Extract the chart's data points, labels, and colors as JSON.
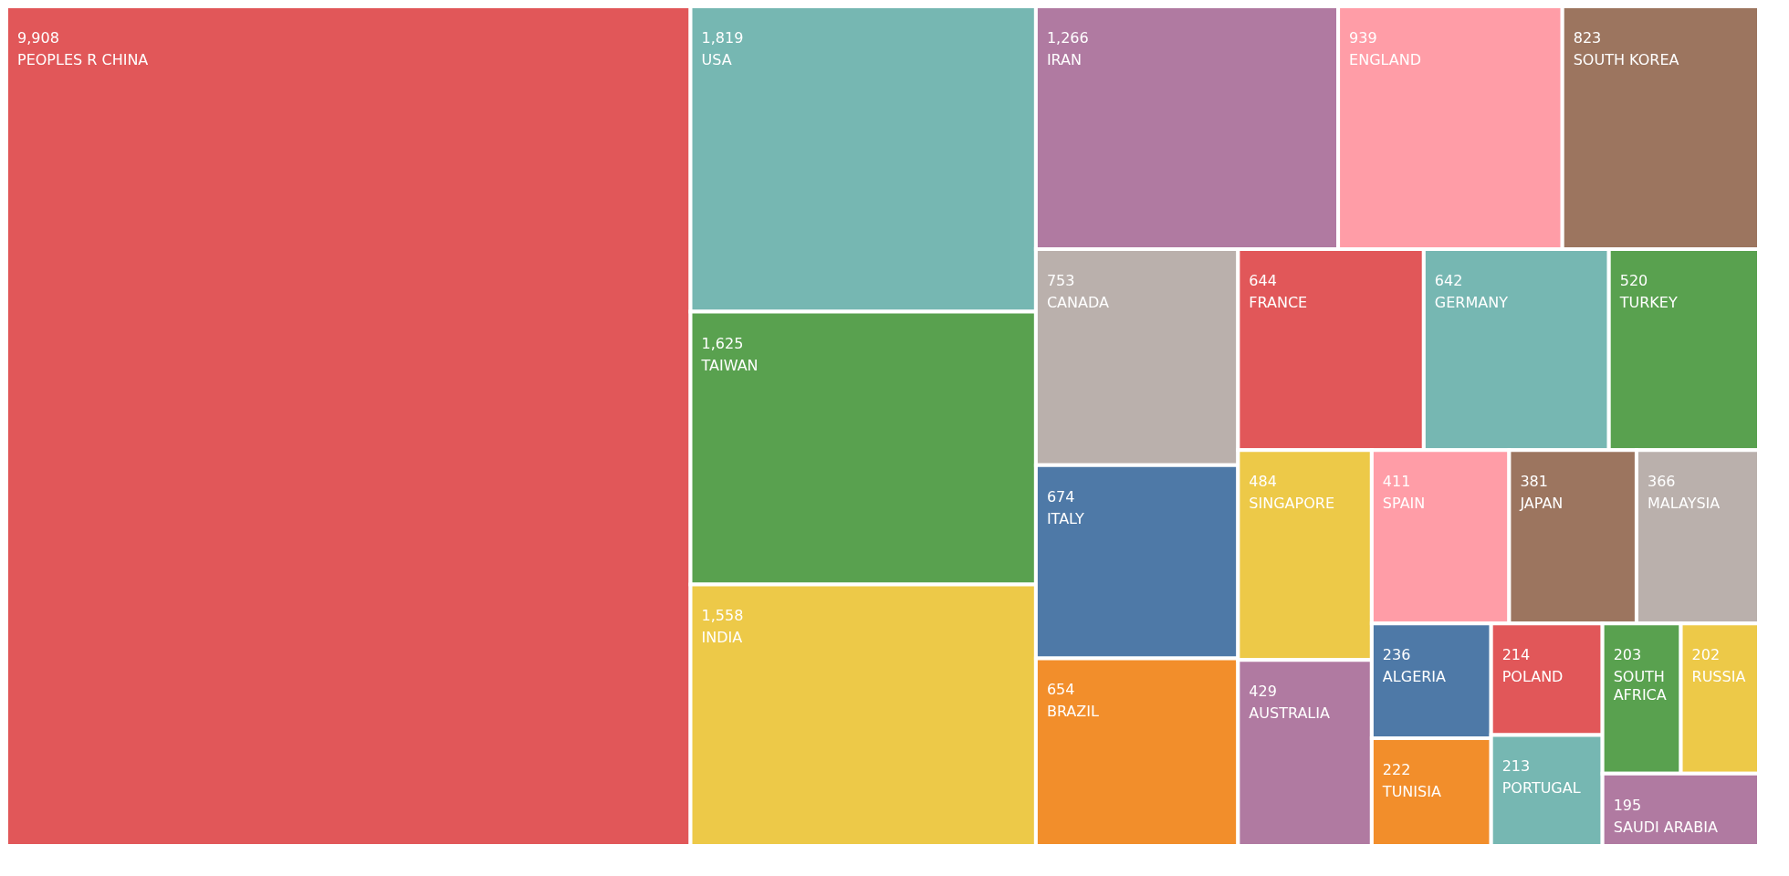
{
  "chart_data": {
    "type": "other",
    "categories": [
      "PEOPLES R CHINA",
      "USA",
      "TAIWAN",
      "INDIA",
      "IRAN",
      "ENGLAND",
      "SOUTH KOREA",
      "CANADA",
      "ITALY",
      "BRAZIL",
      "FRANCE",
      "GERMANY",
      "TURKEY",
      "SINGAPORE",
      "AUSTRALIA",
      "SPAIN",
      "JAPAN",
      "MALAYSIA",
      "ALGERIA",
      "TUNISIA",
      "POLAND",
      "PORTUGAL",
      "SOUTH AFRICA",
      "RUSSIA",
      "SAUDI ARABIA"
    ],
    "values": [
      9908,
      1819,
      1625,
      1558,
      1266,
      939,
      823,
      753,
      674,
      654,
      644,
      642,
      520,
      484,
      429,
      411,
      381,
      366,
      236,
      222,
      214,
      213,
      203,
      202,
      195
    ],
    "colors": [
      "#e15759",
      "#76b7b2",
      "#59a14f",
      "#edc948",
      "#b07aa1",
      "#ff9da7",
      "#9c755f",
      "#bab0ac",
      "#4e79a7",
      "#f28e2b",
      "#e15759",
      "#76b7b2",
      "#59a14f",
      "#edc948",
      "#b07aa1",
      "#ff9da7",
      "#9c755f",
      "#bab0ac",
      "#4e79a7",
      "#f28e2b",
      "#e15759",
      "#76b7b2",
      "#59a14f",
      "#edc948",
      "#b07aa1"
    ],
    "value_labels": [
      "9,908",
      "1,819",
      "1,625",
      "1,558",
      "1,266",
      "939",
      "823",
      "753",
      "674",
      "654",
      "644",
      "642",
      "520",
      "484",
      "429",
      "411",
      "381",
      "366",
      "236",
      "222",
      "214",
      "213",
      "203",
      "202",
      "195"
    ]
  }
}
